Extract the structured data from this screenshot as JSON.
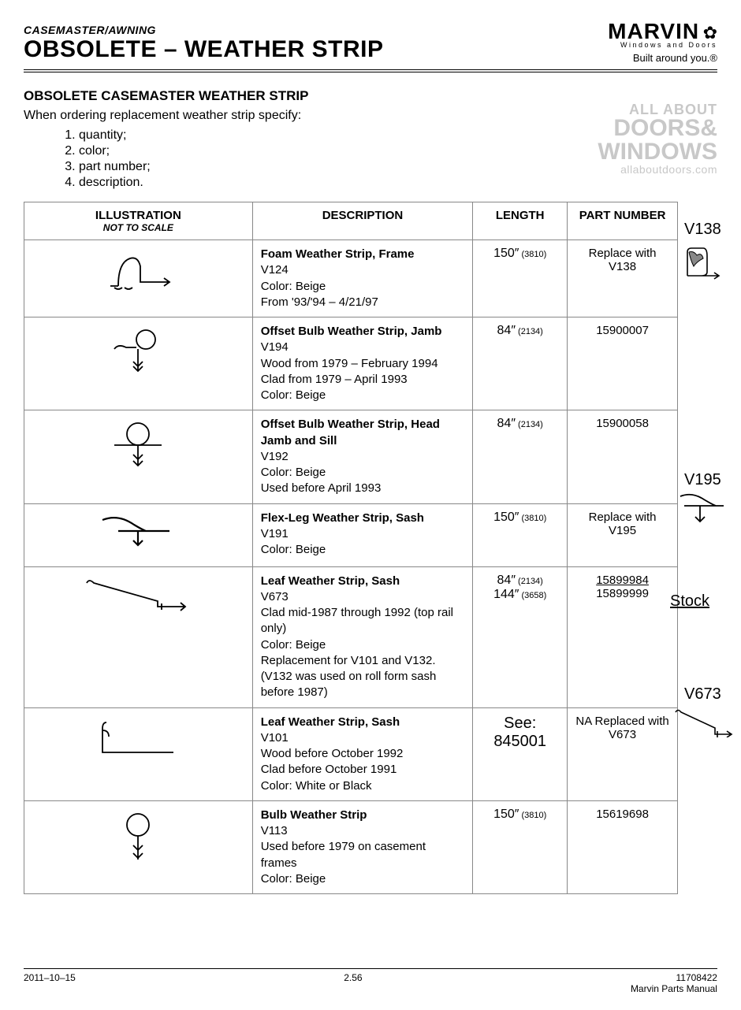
{
  "header": {
    "category": "CASEMASTER/AWNING",
    "title": "OBSOLETE – WEATHER STRIP",
    "brand": "MARVIN",
    "brand_sub": "Windows and Doors",
    "brand_tagline": "Built around you.®"
  },
  "watermark": {
    "line1": "ALL ABOUT",
    "line2": "DOORS&",
    "line3": "WINDOWS",
    "url": "allaboutdoors.com"
  },
  "section": {
    "title": "OBSOLETE CASEMASTER WEATHER STRIP",
    "intro": "When ordering replacement weather strip specify:",
    "list": [
      "quantity;",
      "color;",
      "part number;",
      "description."
    ]
  },
  "table": {
    "headers": {
      "illustration": "ILLUSTRATION",
      "illustration_sub": "NOT TO SCALE",
      "description": "DESCRIPTION",
      "length": "LENGTH",
      "part_number": "PART NUMBER"
    },
    "rows": [
      {
        "icon": "foam-frame",
        "title": "Foam Weather Strip, Frame",
        "lines": [
          "V124",
          "Color: Beige",
          "From '93/'94 – 4/21/97"
        ],
        "length": [
          {
            "main": "150″",
            "mm": "(3810)"
          }
        ],
        "part": "Replace with V138"
      },
      {
        "icon": "offset-bulb-jamb",
        "title": "Offset Bulb Weather Strip, Jamb",
        "lines": [
          "V194",
          "Wood from 1979 – February 1994",
          "Clad from 1979 – April 1993",
          "Color: Beige"
        ],
        "length": [
          {
            "main": "84″",
            "mm": "(2134)"
          }
        ],
        "part": "15900007"
      },
      {
        "icon": "offset-bulb-head",
        "title": "Offset Bulb Weather Strip, Head Jamb and Sill",
        "lines": [
          "V192",
          "Color:  Beige",
          "Used before April 1993"
        ],
        "length": [
          {
            "main": "84″",
            "mm": "(2134)"
          }
        ],
        "part": "15900058"
      },
      {
        "icon": "flex-leg",
        "title": "Flex-Leg Weather Strip, Sash",
        "lines": [
          "V191",
          "Color: Beige"
        ],
        "length": [
          {
            "main": "150″",
            "mm": "(3810)"
          }
        ],
        "part": "Replace with V195"
      },
      {
        "icon": "leaf-sash",
        "title": "Leaf Weather Strip, Sash",
        "lines": [
          "V673",
          "Clad mid-1987 through 1992 (top rail only)",
          "Color: Beige",
          "Replacement for V101 and V132. (V132 was used on roll form sash before 1987)"
        ],
        "length": [
          {
            "main": "84″",
            "mm": "(2134)"
          },
          {
            "main": "144″",
            "mm": "(3658)"
          }
        ],
        "part_multi": [
          {
            "text": "15899984",
            "underline": true
          },
          {
            "text": "15899999"
          }
        ]
      },
      {
        "icon": "leaf-sash-v101",
        "title": "Leaf Weather Strip, Sash",
        "lines": [
          "V101",
          "Wood before October 1992",
          "Clad before October 1991",
          "Color:  White or Black"
        ],
        "length_see": "See:",
        "length_see_num": "845001",
        "part": "NA Replaced with V673"
      },
      {
        "icon": "bulb",
        "title": "Bulb Weather Strip",
        "lines": [
          "V113",
          "Used before 1979 on casement frames",
          "Color:  Beige"
        ],
        "length": [
          {
            "main": "150″",
            "mm": "(3810)"
          }
        ],
        "part": "15619698"
      }
    ]
  },
  "side_notes": {
    "v138": "V138",
    "v195": "V195",
    "stock": "Stock",
    "v673": "V673"
  },
  "footer": {
    "date": "2011–10–15",
    "page": "2.56",
    "docnum": "11708422",
    "manual": "Marvin Parts Manual"
  },
  "colors": {
    "text": "#000000",
    "border": "#888888",
    "watermark": "#c8c8c8",
    "background": "#ffffff"
  }
}
